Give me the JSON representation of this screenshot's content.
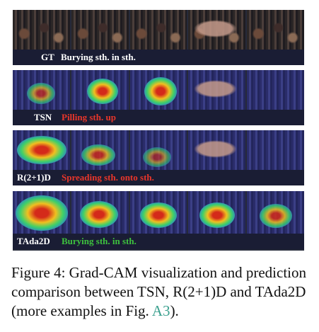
{
  "rows": [
    {
      "method": "GT",
      "prediction": "Burying sth. in sth.",
      "prediction_color": "#ffffff"
    },
    {
      "method": "TSN",
      "prediction": "Pilling sth. up",
      "prediction_color": "#e8362a"
    },
    {
      "method": "R(2+1)D",
      "prediction": "Spreading sth. onto sth.",
      "prediction_color": "#e8362a"
    },
    {
      "method": "TAda2D",
      "prediction": "Burying sth. in sth.",
      "prediction_color": "#3ec23e"
    }
  ],
  "caption": {
    "text": "Figure 4: Grad-CAM visualization and prediction comparison between TSN, R(2+1)D and TAda2D (more examples in Fig. ",
    "ref": "A3",
    "end": ")."
  }
}
